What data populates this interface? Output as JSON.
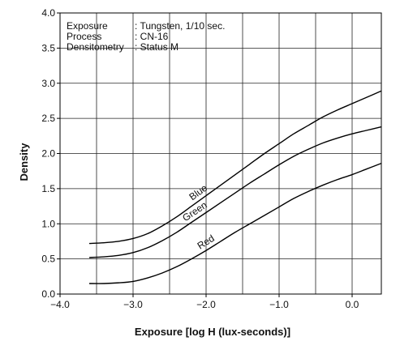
{
  "chart_data": {
    "type": "line",
    "xlabel": "Exposure [log H (lux-seconds)]",
    "ylabel": "Density",
    "xlim": [
      -4.0,
      0.4
    ],
    "ylim": [
      0.0,
      4.0
    ],
    "grid": true,
    "x_ticks": [
      -4.0,
      -3.0,
      -2.0,
      -1.0,
      0.0
    ],
    "x_tick_labels": [
      "−4.0",
      "−3.0",
      "−2.0",
      "−1.0",
      "0.0"
    ],
    "y_ticks": [
      0.0,
      0.5,
      1.0,
      1.5,
      2.0,
      2.5,
      3.0,
      3.5,
      4.0
    ],
    "y_tick_labels": [
      "0.0",
      "0.5",
      "1.0",
      "1.5",
      "2.0",
      "2.5",
      "3.0",
      "3.5",
      "4.0"
    ],
    "annotations": [
      {
        "key": "Exposure",
        "value": ": Tungsten, 1/10 sec."
      },
      {
        "key": "Process",
        "value": ": CN-16"
      },
      {
        "key": "Densitometry",
        "value": ": Status M"
      }
    ],
    "series": [
      {
        "name": "Blue",
        "x": [
          -3.6,
          -3.4,
          -3.2,
          -3.0,
          -2.8,
          -2.6,
          -2.4,
          -2.2,
          -2.0,
          -1.8,
          -1.6,
          -1.4,
          -1.2,
          -1.0,
          -0.8,
          -0.6,
          -0.4,
          -0.2,
          0.0,
          0.2,
          0.4
        ],
        "y": [
          0.72,
          0.73,
          0.75,
          0.79,
          0.86,
          0.97,
          1.1,
          1.25,
          1.4,
          1.55,
          1.7,
          1.85,
          2.0,
          2.14,
          2.28,
          2.4,
          2.52,
          2.62,
          2.71,
          2.8,
          2.89
        ]
      },
      {
        "name": "Green",
        "x": [
          -3.6,
          -3.4,
          -3.2,
          -3.0,
          -2.8,
          -2.6,
          -2.4,
          -2.2,
          -2.0,
          -1.8,
          -1.6,
          -1.4,
          -1.2,
          -1.0,
          -0.8,
          -0.6,
          -0.4,
          -0.2,
          0.0,
          0.2,
          0.4
        ],
        "y": [
          0.52,
          0.53,
          0.55,
          0.59,
          0.66,
          0.76,
          0.88,
          1.02,
          1.16,
          1.3,
          1.44,
          1.58,
          1.71,
          1.84,
          1.96,
          2.06,
          2.15,
          2.22,
          2.28,
          2.33,
          2.38
        ]
      },
      {
        "name": "Red",
        "x": [
          -3.6,
          -3.4,
          -3.2,
          -3.0,
          -2.8,
          -2.6,
          -2.4,
          -2.2,
          -2.0,
          -1.8,
          -1.6,
          -1.4,
          -1.2,
          -1.0,
          -0.8,
          -0.6,
          -0.4,
          -0.2,
          0.0,
          0.2,
          0.4
        ],
        "y": [
          0.15,
          0.15,
          0.16,
          0.18,
          0.23,
          0.3,
          0.39,
          0.5,
          0.62,
          0.75,
          0.88,
          1.0,
          1.12,
          1.24,
          1.36,
          1.46,
          1.55,
          1.63,
          1.7,
          1.78,
          1.86
        ]
      }
    ]
  }
}
